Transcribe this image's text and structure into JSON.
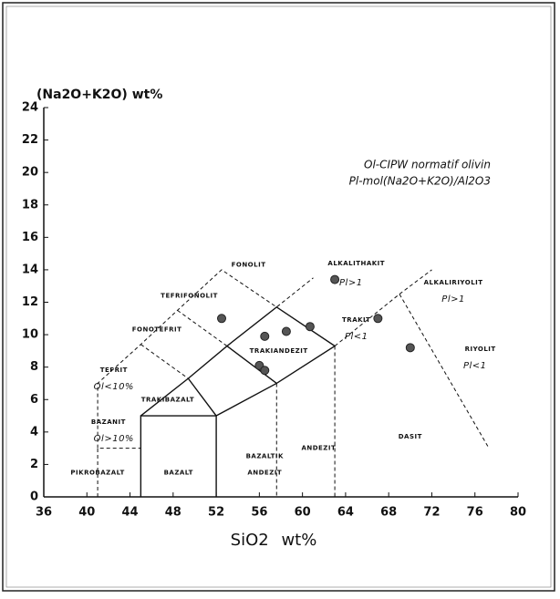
{
  "chart_data": {
    "type": "scatter",
    "y_label": "(Na2O+K2O) wt%",
    "x_label": "SiO2 wt%",
    "notes": [
      "Ol-CIPW normatif olivin",
      "Pl-mol(Na2O+K2O)/Al2O3"
    ],
    "xlim": [
      36,
      80
    ],
    "ylim": [
      0,
      24
    ],
    "xticks": [
      36,
      40,
      44,
      48,
      52,
      56,
      60,
      64,
      68,
      72,
      76,
      80
    ],
    "yticks": [
      0,
      2,
      4,
      6,
      8,
      10,
      12,
      14,
      16,
      18,
      20,
      22,
      24
    ],
    "color": "#555555",
    "x": [
      52.5,
      56.5,
      58.5,
      60.7,
      63,
      67,
      70,
      56,
      56.5
    ],
    "values": [
      11.0,
      9.9,
      10.2,
      10.5,
      13.4,
      11.0,
      9.2,
      8.1,
      7.8
    ],
    "lines": [
      {
        "dashed": false,
        "x": [
          45,
          45,
          52,
          52
        ],
        "y": [
          0,
          5,
          5,
          0
        ]
      },
      {
        "dashed": false,
        "x": [
          45,
          49.4,
          53,
          57.6,
          63,
          57.6,
          52
        ],
        "y": [
          5,
          7.3,
          9.3,
          11.7,
          9.3,
          7,
          5
        ]
      },
      {
        "dashed": false,
        "x": [
          49.4,
          52
        ],
        "y": [
          7.3,
          5
        ]
      },
      {
        "dashed": false,
        "x": [
          53,
          57.6
        ],
        "y": [
          9.3,
          7
        ]
      },
      {
        "dashed": true,
        "x": [
          41,
          41,
          45
        ],
        "y": [
          0,
          3,
          3
        ]
      },
      {
        "dashed": true,
        "x": [
          41,
          41,
          45,
          48.4,
          52.5,
          57.6,
          61
        ],
        "y": [
          3,
          7,
          9.4,
          11.5,
          14,
          11.7,
          13.5
        ]
      },
      {
        "dashed": true,
        "x": [
          45,
          49.4
        ],
        "y": [
          9.4,
          7.3
        ]
      },
      {
        "dashed": true,
        "x": [
          48.4,
          53
        ],
        "y": [
          11.5,
          9.3
        ]
      },
      {
        "dashed": true,
        "x": [
          57.6,
          57.6
        ],
        "y": [
          7,
          0
        ]
      },
      {
        "dashed": true,
        "x": [
          63,
          63
        ],
        "y": [
          9.3,
          0
        ]
      },
      {
        "dashed": true,
        "x": [
          63,
          69,
          72
        ],
        "y": [
          9.3,
          12.5,
          14
        ]
      },
      {
        "dashed": true,
        "x": [
          69,
          77.3
        ],
        "y": [
          12.5,
          3
        ]
      }
    ],
    "annotations": [
      {
        "text": "FONOLIT",
        "x": 55,
        "y": 14.3,
        "italic": false
      },
      {
        "text": "ALKALITHAKIT",
        "x": 65,
        "y": 14.4,
        "italic": false
      },
      {
        "text": "Pl>1",
        "x": 64.5,
        "y": 13.2,
        "italic": true
      },
      {
        "text": "TEFRIFONOLIT",
        "x": 49.5,
        "y": 12.4,
        "italic": false
      },
      {
        "text": "FONOTEFRIT",
        "x": 46.5,
        "y": 10.3,
        "italic": false
      },
      {
        "text": "TRAKIANDEZIT",
        "x": 57.8,
        "y": 9.0,
        "italic": false
      },
      {
        "text": "TRAKIT",
        "x": 65,
        "y": 10.9,
        "italic": false
      },
      {
        "text": "Pl<1",
        "x": 65,
        "y": 9.9,
        "italic": true
      },
      {
        "text": "ALKALIRIYOLIT",
        "x": 74,
        "y": 13.2,
        "italic": false
      },
      {
        "text": "Pl>1",
        "x": 74,
        "y": 12.2,
        "italic": true
      },
      {
        "text": "RIYOLIT",
        "x": 76.5,
        "y": 9.1,
        "italic": false
      },
      {
        "text": "Pl<1",
        "x": 76,
        "y": 8.1,
        "italic": true
      },
      {
        "text": "TEFRIT",
        "x": 42.5,
        "y": 7.8,
        "italic": false
      },
      {
        "text": "Ol<10%",
        "x": 42.5,
        "y": 6.8,
        "italic": true
      },
      {
        "text": "TRAKIBAZALT",
        "x": 47.5,
        "y": 6.0,
        "italic": false
      },
      {
        "text": "BAZANIT",
        "x": 42,
        "y": 4.6,
        "italic": false
      },
      {
        "text": "Ol>10%",
        "x": 42.5,
        "y": 3.6,
        "italic": true
      },
      {
        "text": "PIKROBAZALT",
        "x": 41,
        "y": 1.5,
        "italic": false
      },
      {
        "text": "BAZALT",
        "x": 48.5,
        "y": 1.5,
        "italic": false
      },
      {
        "text": "BAZALTIK",
        "x": 56.5,
        "y": 2.5,
        "italic": false
      },
      {
        "text": "ANDEZIT",
        "x": 56.5,
        "y": 1.5,
        "italic": false
      },
      {
        "text": "ANDEZIT",
        "x": 61.5,
        "y": 3.0,
        "italic": false
      },
      {
        "text": "DASIT",
        "x": 70,
        "y": 3.7,
        "italic": false
      }
    ]
  }
}
